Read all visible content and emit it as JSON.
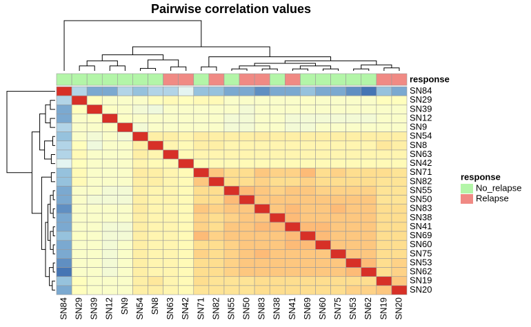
{
  "chart_data": {
    "type": "heatmap",
    "title": "Pairwise correlation values",
    "categories": [
      "SN84",
      "SN29",
      "SN39",
      "SN12",
      "SN9",
      "SN54",
      "SN8",
      "SN63",
      "SN42",
      "SN71",
      "SN82",
      "SN55",
      "SN50",
      "SN83",
      "SN38",
      "SN41",
      "SN69",
      "SN60",
      "SN75",
      "SN53",
      "SN62",
      "SN19",
      "SN20"
    ],
    "values": [
      [
        1,
        0.35,
        0.25,
        0.25,
        0.35,
        0.3,
        0.35,
        0.35,
        0.45,
        0.3,
        0.3,
        0.25,
        0.25,
        0.2,
        0.25,
        0.25,
        0.3,
        0.25,
        0.25,
        0.2,
        0.15,
        0.3,
        0.25
      ],
      [
        0.35,
        1,
        0.58,
        0.55,
        0.55,
        0.55,
        0.58,
        0.6,
        0.58,
        0.6,
        0.6,
        0.55,
        0.55,
        0.55,
        0.55,
        0.55,
        0.56,
        0.55,
        0.55,
        0.55,
        0.55,
        0.58,
        0.58
      ],
      [
        0.25,
        0.58,
        1,
        0.56,
        0.55,
        0.52,
        0.5,
        0.55,
        0.55,
        0.55,
        0.55,
        0.55,
        0.52,
        0.55,
        0.55,
        0.55,
        0.55,
        0.55,
        0.55,
        0.55,
        0.55,
        0.55,
        0.55
      ],
      [
        0.25,
        0.55,
        0.56,
        1,
        0.56,
        0.55,
        0.55,
        0.55,
        0.55,
        0.55,
        0.55,
        0.52,
        0.52,
        0.55,
        0.55,
        0.52,
        0.52,
        0.52,
        0.52,
        0.52,
        0.52,
        0.55,
        0.55
      ],
      [
        0.35,
        0.55,
        0.55,
        0.56,
        1,
        0.52,
        0.55,
        0.55,
        0.55,
        0.55,
        0.55,
        0.52,
        0.52,
        0.55,
        0.55,
        0.52,
        0.52,
        0.55,
        0.55,
        0.55,
        0.55,
        0.55,
        0.55
      ],
      [
        0.3,
        0.55,
        0.52,
        0.55,
        0.52,
        1,
        0.65,
        0.65,
        0.62,
        0.66,
        0.65,
        0.65,
        0.65,
        0.66,
        0.65,
        0.65,
        0.65,
        0.65,
        0.65,
        0.65,
        0.65,
        0.65,
        0.65
      ],
      [
        0.35,
        0.58,
        0.5,
        0.55,
        0.55,
        0.65,
        1,
        0.62,
        0.6,
        0.65,
        0.65,
        0.62,
        0.62,
        0.62,
        0.62,
        0.62,
        0.62,
        0.62,
        0.62,
        0.62,
        0.62,
        0.68,
        0.65
      ],
      [
        0.35,
        0.6,
        0.55,
        0.55,
        0.55,
        0.65,
        0.62,
        1,
        0.6,
        0.62,
        0.62,
        0.62,
        0.62,
        0.62,
        0.62,
        0.62,
        0.62,
        0.62,
        0.62,
        0.62,
        0.62,
        0.62,
        0.62
      ],
      [
        0.45,
        0.58,
        0.55,
        0.55,
        0.55,
        0.62,
        0.6,
        0.6,
        1,
        0.6,
        0.6,
        0.6,
        0.6,
        0.6,
        0.6,
        0.6,
        0.6,
        0.6,
        0.6,
        0.6,
        0.6,
        0.6,
        0.6
      ],
      [
        0.3,
        0.6,
        0.55,
        0.55,
        0.55,
        0.66,
        0.65,
        0.62,
        0.6,
        1,
        0.76,
        0.72,
        0.72,
        0.76,
        0.74,
        0.74,
        0.78,
        0.72,
        0.74,
        0.72,
        0.72,
        0.72,
        0.7
      ],
      [
        0.3,
        0.6,
        0.55,
        0.55,
        0.55,
        0.65,
        0.65,
        0.62,
        0.6,
        0.76,
        1,
        0.72,
        0.72,
        0.74,
        0.72,
        0.72,
        0.74,
        0.72,
        0.72,
        0.72,
        0.72,
        0.7,
        0.7
      ],
      [
        0.25,
        0.55,
        0.55,
        0.52,
        0.52,
        0.65,
        0.62,
        0.62,
        0.6,
        0.72,
        0.72,
        1,
        0.78,
        0.76,
        0.74,
        0.76,
        0.76,
        0.74,
        0.74,
        0.74,
        0.74,
        0.7,
        0.7
      ],
      [
        0.25,
        0.55,
        0.52,
        0.52,
        0.52,
        0.65,
        0.62,
        0.62,
        0.6,
        0.72,
        0.72,
        0.78,
        1,
        0.76,
        0.76,
        0.76,
        0.76,
        0.76,
        0.76,
        0.76,
        0.76,
        0.7,
        0.7
      ],
      [
        0.2,
        0.55,
        0.55,
        0.55,
        0.55,
        0.66,
        0.62,
        0.62,
        0.6,
        0.76,
        0.74,
        0.76,
        0.76,
        1,
        0.76,
        0.78,
        0.76,
        0.76,
        0.78,
        0.76,
        0.76,
        0.72,
        0.72
      ],
      [
        0.25,
        0.55,
        0.55,
        0.55,
        0.55,
        0.65,
        0.62,
        0.62,
        0.6,
        0.74,
        0.72,
        0.74,
        0.76,
        0.76,
        1,
        0.78,
        0.76,
        0.76,
        0.76,
        0.76,
        0.76,
        0.72,
        0.72
      ],
      [
        0.25,
        0.55,
        0.55,
        0.52,
        0.52,
        0.65,
        0.62,
        0.62,
        0.6,
        0.74,
        0.72,
        0.76,
        0.76,
        0.78,
        0.78,
        1,
        0.78,
        0.78,
        0.76,
        0.76,
        0.76,
        0.72,
        0.72
      ],
      [
        0.3,
        0.56,
        0.55,
        0.52,
        0.52,
        0.65,
        0.62,
        0.62,
        0.6,
        0.78,
        0.74,
        0.76,
        0.76,
        0.76,
        0.76,
        0.78,
        1,
        0.78,
        0.76,
        0.76,
        0.76,
        0.72,
        0.72
      ],
      [
        0.25,
        0.55,
        0.55,
        0.52,
        0.55,
        0.65,
        0.62,
        0.62,
        0.6,
        0.72,
        0.72,
        0.74,
        0.76,
        0.76,
        0.76,
        0.78,
        0.78,
        1,
        0.76,
        0.76,
        0.76,
        0.72,
        0.72
      ],
      [
        0.25,
        0.55,
        0.55,
        0.52,
        0.55,
        0.65,
        0.62,
        0.62,
        0.6,
        0.74,
        0.72,
        0.74,
        0.76,
        0.78,
        0.76,
        0.76,
        0.76,
        0.76,
        1,
        0.76,
        0.76,
        0.72,
        0.72
      ],
      [
        0.2,
        0.55,
        0.55,
        0.52,
        0.55,
        0.65,
        0.62,
        0.62,
        0.6,
        0.72,
        0.72,
        0.74,
        0.76,
        0.76,
        0.76,
        0.76,
        0.76,
        0.76,
        0.76,
        1,
        0.78,
        0.72,
        0.74
      ],
      [
        0.15,
        0.55,
        0.55,
        0.52,
        0.55,
        0.65,
        0.62,
        0.62,
        0.6,
        0.72,
        0.72,
        0.74,
        0.76,
        0.76,
        0.76,
        0.76,
        0.76,
        0.76,
        0.76,
        0.78,
        1,
        0.72,
        0.74
      ],
      [
        0.3,
        0.58,
        0.55,
        0.55,
        0.55,
        0.65,
        0.68,
        0.62,
        0.6,
        0.72,
        0.7,
        0.7,
        0.7,
        0.72,
        0.72,
        0.72,
        0.72,
        0.72,
        0.72,
        0.72,
        0.72,
        1,
        0.76
      ],
      [
        0.25,
        0.58,
        0.55,
        0.55,
        0.55,
        0.65,
        0.65,
        0.62,
        0.6,
        0.7,
        0.7,
        0.7,
        0.7,
        0.72,
        0.72,
        0.72,
        0.72,
        0.72,
        0.72,
        0.74,
        0.74,
        0.76,
        1
      ]
    ],
    "zlim": [
      0.15,
      1
    ],
    "color_scale": [
      "#4575b4",
      "#91bfdb",
      "#e0f3f8",
      "#ffffbf",
      "#fee090",
      "#fc8d59",
      "#d73027"
    ],
    "annotation": {
      "name": "response",
      "levels": [
        {
          "name": "No_relapse",
          "color": "#b3f5a8"
        },
        {
          "name": "Relapse",
          "color": "#f08a84"
        }
      ],
      "values": [
        "No_relapse",
        "No_relapse",
        "No_relapse",
        "No_relapse",
        "No_relapse",
        "No_relapse",
        "No_relapse",
        "Relapse",
        "Relapse",
        "No_relapse",
        "Relapse",
        "No_relapse",
        "Relapse",
        "Relapse",
        "No_relapse",
        "Relapse",
        "No_relapse",
        "No_relapse",
        "No_relapse",
        "No_relapse",
        "No_relapse",
        "Relapse",
        "Relapse"
      ]
    }
  }
}
